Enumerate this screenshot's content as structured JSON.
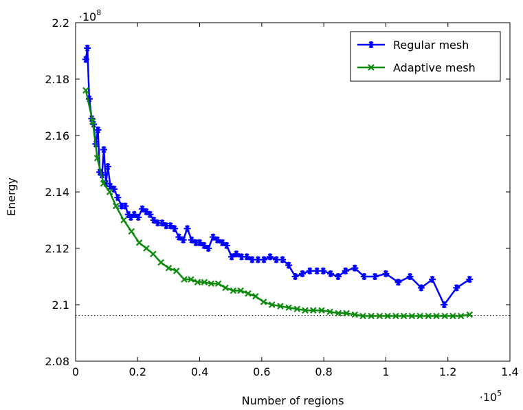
{
  "chart_data": {
    "type": "line",
    "xlabel": "Number of regions",
    "ylabel": "Energy",
    "x_multiplier_label": "·10",
    "x_multiplier_exp": "5",
    "y_multiplier_label": "·10",
    "y_multiplier_exp": "8",
    "xlim": [
      0,
      1.4
    ],
    "ylim": [
      2.08,
      2.2
    ],
    "x_ticks": [
      0,
      0.2,
      0.4,
      0.6,
      0.8,
      1.0,
      1.2,
      1.4
    ],
    "x_tick_labels": [
      "0",
      "0.2",
      "0.4",
      "0.6",
      "0.8",
      "1",
      "1.2",
      "1.4"
    ],
    "y_ticks": [
      2.08,
      2.1,
      2.12,
      2.14,
      2.16,
      2.18,
      2.2
    ],
    "y_tick_labels": [
      "2.08",
      "2.1",
      "2.12",
      "2.14",
      "2.16",
      "2.18",
      "2.2"
    ],
    "grid": false,
    "legend_position": "top-right",
    "reference_line": {
      "y": 2.0962,
      "style": "dotted"
    },
    "series": [
      {
        "name": "Regular mesh",
        "color": "#0000ff",
        "marker": "asterisk",
        "x": [
          0.033,
          0.038,
          0.044,
          0.052,
          0.058,
          0.065,
          0.072,
          0.078,
          0.085,
          0.091,
          0.098,
          0.104,
          0.112,
          0.124,
          0.136,
          0.148,
          0.16,
          0.17,
          0.178,
          0.189,
          0.202,
          0.215,
          0.228,
          0.24,
          0.252,
          0.265,
          0.279,
          0.292,
          0.306,
          0.319,
          0.333,
          0.347,
          0.36,
          0.374,
          0.388,
          0.4,
          0.414,
          0.428,
          0.443,
          0.457,
          0.473,
          0.487,
          0.503,
          0.518,
          0.535,
          0.552,
          0.569,
          0.588,
          0.607,
          0.627,
          0.647,
          0.667,
          0.687,
          0.708,
          0.731,
          0.755,
          0.778,
          0.798,
          0.822,
          0.846,
          0.87,
          0.9,
          0.93,
          0.965,
          1.0,
          1.04,
          1.078,
          1.114,
          1.15,
          1.188,
          1.228,
          1.27
        ],
        "values": [
          2.187,
          2.191,
          2.173,
          2.166,
          2.164,
          2.157,
          2.162,
          2.147,
          2.146,
          2.155,
          2.143,
          2.149,
          2.142,
          2.141,
          2.138,
          2.135,
          2.135,
          2.132,
          2.131,
          2.132,
          2.131,
          2.134,
          2.133,
          2.132,
          2.13,
          2.129,
          2.129,
          2.128,
          2.128,
          2.127,
          2.124,
          2.123,
          2.127,
          2.123,
          2.122,
          2.122,
          2.121,
          2.12,
          2.124,
          2.123,
          2.122,
          2.121,
          2.117,
          2.118,
          2.117,
          2.117,
          2.116,
          2.116,
          2.116,
          2.117,
          2.116,
          2.116,
          2.114,
          2.11,
          2.111,
          2.112,
          2.112,
          2.112,
          2.111,
          2.11,
          2.112,
          2.113,
          2.11,
          2.11,
          2.111,
          2.108,
          2.11,
          2.106,
          2.109,
          2.1,
          2.106,
          2.109
        ]
      },
      {
        "name": "Adaptive mesh",
        "color": "#0a8a0a",
        "marker": "x",
        "x": [
          0.033,
          0.055,
          0.07,
          0.09,
          0.11,
          0.13,
          0.155,
          0.18,
          0.205,
          0.228,
          0.25,
          0.275,
          0.3,
          0.325,
          0.35,
          0.372,
          0.393,
          0.415,
          0.437,
          0.46,
          0.483,
          0.508,
          0.532,
          0.556,
          0.58,
          0.606,
          0.633,
          0.66,
          0.687,
          0.714,
          0.74,
          0.766,
          0.793,
          0.82,
          0.847,
          0.873,
          0.9,
          0.926,
          0.953,
          0.98,
          1.006,
          1.032,
          1.058,
          1.084,
          1.11,
          1.137,
          1.163,
          1.19,
          1.216,
          1.242,
          1.27
        ],
        "values": [
          2.176,
          2.165,
          2.152,
          2.143,
          2.14,
          2.135,
          2.13,
          2.126,
          2.122,
          2.12,
          2.118,
          2.115,
          2.113,
          2.112,
          2.109,
          2.109,
          2.108,
          2.108,
          2.1075,
          2.1075,
          2.106,
          2.105,
          2.105,
          2.104,
          2.103,
          2.101,
          2.1,
          2.0995,
          2.099,
          2.0985,
          2.098,
          2.098,
          2.098,
          2.0975,
          2.097,
          2.097,
          2.0965,
          2.096,
          2.096,
          2.096,
          2.096,
          2.096,
          2.096,
          2.096,
          2.096,
          2.096,
          2.096,
          2.096,
          2.096,
          2.096,
          2.0965
        ]
      }
    ]
  }
}
